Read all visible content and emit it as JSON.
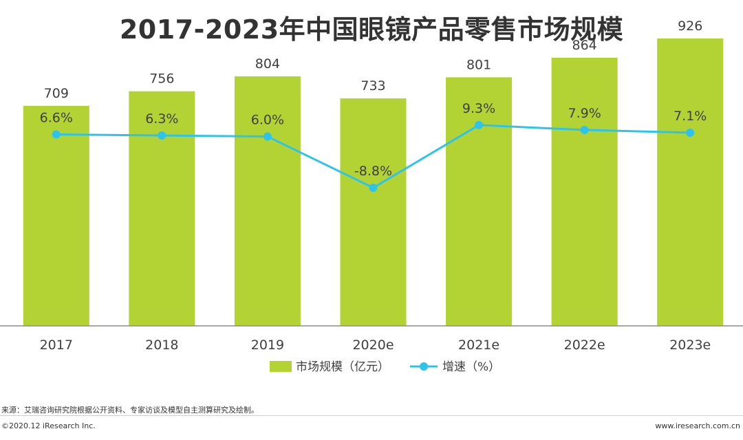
{
  "title": "2017-2023年中国眼镜产品零售市场规模",
  "chart_data": {
    "type": "bar+line",
    "title": "2017-2023年中国眼镜产品零售市场规模",
    "categories": [
      "2017",
      "2018",
      "2019",
      "2020e",
      "2021e",
      "2022e",
      "2023e"
    ],
    "series": [
      {
        "name": "市场规模（亿元）",
        "type": "bar",
        "values": [
          709,
          756,
          804,
          733,
          801,
          864,
          926
        ],
        "labels": [
          "709",
          "756",
          "804",
          "733",
          "801",
          "864",
          "926"
        ],
        "color": "#b3d334"
      },
      {
        "name": "增速（%）",
        "type": "line",
        "values": [
          6.6,
          6.3,
          6.0,
          -8.8,
          9.3,
          7.9,
          7.1
        ],
        "labels": [
          "6.6%",
          "6.3%",
          "6.0%",
          "-8.8%",
          "9.3%",
          "7.9%",
          "7.1%"
        ],
        "color": "#2ec4ea"
      }
    ],
    "bar_ylim": [
      0,
      1050
    ],
    "line_ylim": [
      -30,
      20
    ],
    "legend_position": "bottom-center"
  },
  "footer": {
    "source": "来源：艾瑞咨询研究院根据公开资料、专家访谈及模型自主测算研究及绘制。",
    "copyright": "©2020.12 iResearch Inc.",
    "website": "www.iresearch.com.cn"
  }
}
